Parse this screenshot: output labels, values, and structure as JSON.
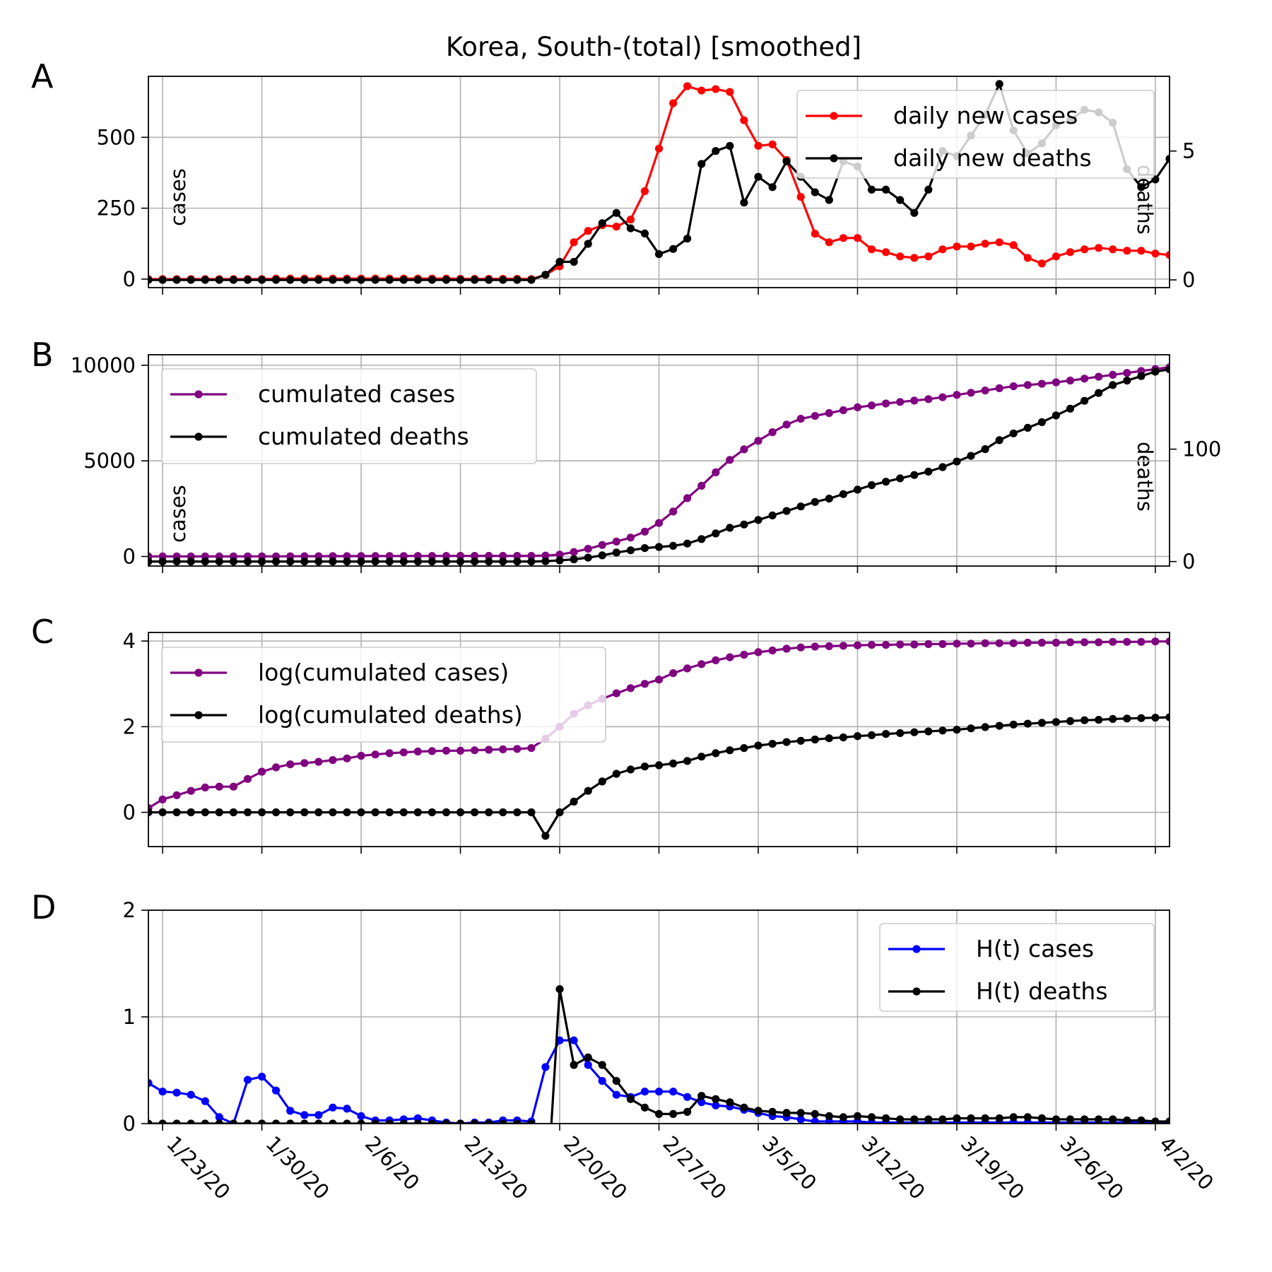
{
  "figure": {
    "title": "Korea, South-(total) [smoothed]"
  },
  "colors": {
    "cases": "#ff0000",
    "deaths": "#000000",
    "cumulated_cases": "#800080",
    "h_cases": "#0000ff",
    "grid": "#b0b0b0"
  },
  "x_tick_labels": [
    "1/23/20",
    "1/30/20",
    "2/6/20",
    "2/13/20",
    "2/20/20",
    "2/27/20",
    "3/5/20",
    "3/12/20",
    "3/19/20",
    "3/26/20",
    "4/2/20"
  ],
  "chart_data": [
    {
      "panel": "A",
      "type": "line",
      "title": "Korea, South-(total) [smoothed]",
      "x_start": "2020-01-22",
      "x_end": "2020-04-03",
      "xticks": [
        "1/23/20",
        "1/30/20",
        "2/6/20",
        "2/13/20",
        "2/20/20",
        "2/27/20",
        "3/5/20",
        "3/12/20",
        "3/19/20",
        "3/26/20",
        "4/2/20"
      ],
      "ylabel": "cases",
      "ylim": [
        -30,
        715
      ],
      "yticks": [
        0,
        250,
        500
      ],
      "y2label": "deaths",
      "y2lim": [
        -0.3,
        7.9
      ],
      "y2ticks": [
        0,
        5
      ],
      "grid": true,
      "legend_position": "upper right",
      "series": [
        {
          "name": "daily new cases",
          "axis": "left",
          "color": "#ff0000",
          "values": [
            0,
            0,
            0,
            0,
            0,
            0,
            0,
            0,
            0,
            2,
            2,
            2,
            2,
            2,
            2,
            2,
            2,
            2,
            2,
            2,
            2,
            2,
            1,
            1,
            1,
            1,
            1,
            0,
            15,
            45,
            130,
            170,
            190,
            185,
            210,
            310,
            460,
            620,
            680,
            665,
            670,
            660,
            560,
            470,
            475,
            420,
            290,
            160,
            130,
            145,
            145,
            105,
            95,
            80,
            75,
            80,
            105,
            115,
            115,
            125,
            130,
            120,
            75,
            55,
            80,
            95,
            105,
            110,
            105,
            100,
            100,
            90,
            85
          ]
        },
        {
          "name": "daily new deaths",
          "axis": "right",
          "color": "#000000",
          "values": [
            0,
            0,
            0,
            0,
            0,
            0,
            0,
            0,
            0,
            0,
            0,
            0,
            0,
            0,
            0,
            0,
            0,
            0,
            0,
            0,
            0,
            0,
            0,
            0,
            0,
            0,
            0,
            0,
            0.2,
            0.7,
            0.7,
            1.4,
            2.2,
            2.6,
            2.0,
            1.8,
            1.0,
            1.2,
            1.6,
            4.5,
            5.0,
            5.2,
            3.0,
            4.0,
            3.6,
            4.6,
            4.0,
            3.4,
            3.1,
            4.6,
            4.4,
            3.5,
            3.5,
            3.1,
            2.6,
            3.5,
            5.0,
            4.8,
            5.6,
            6.4,
            7.6,
            5.8,
            4.9,
            5.3,
            6.0,
            6.2,
            6.6,
            6.5,
            6.1,
            4.3,
            3.6,
            3.9,
            4.7
          ]
        }
      ]
    },
    {
      "panel": "B",
      "type": "line",
      "x_start": "2020-01-22",
      "x_end": "2020-04-03",
      "xticks": [
        "1/23/20",
        "1/30/20",
        "2/6/20",
        "2/13/20",
        "2/20/20",
        "2/27/20",
        "3/5/20",
        "3/12/20",
        "3/19/20",
        "3/26/20",
        "4/2/20"
      ],
      "ylabel": "cases",
      "ylim": [
        -500,
        10550
      ],
      "yticks": [
        0,
        5000,
        10000
      ],
      "y2label": "deaths",
      "y2lim": [
        -4,
        184
      ],
      "y2ticks": [
        0,
        100
      ],
      "grid": true,
      "legend_position": "upper left",
      "series": [
        {
          "name": "cumulated cases",
          "axis": "left",
          "color": "#800080",
          "values": [
            1,
            1,
            1,
            1,
            2,
            2,
            4,
            5,
            6,
            8,
            10,
            12,
            14,
            16,
            18,
            20,
            22,
            24,
            26,
            28,
            29,
            30,
            31,
            31,
            31,
            31,
            31,
            31,
            46,
            100,
            230,
            400,
            600,
            780,
            990,
            1300,
            1750,
            2350,
            3050,
            3700,
            4400,
            5050,
            5600,
            6050,
            6500,
            6900,
            7200,
            7350,
            7500,
            7650,
            7800,
            7900,
            8000,
            8080,
            8150,
            8230,
            8330,
            8450,
            8560,
            8680,
            8800,
            8900,
            8970,
            9030,
            9110,
            9200,
            9300,
            9400,
            9500,
            9600,
            9700,
            9800,
            9900
          ]
        },
        {
          "name": "cumulated deaths",
          "axis": "right",
          "color": "#000000",
          "values": [
            0,
            0,
            0,
            0,
            0,
            0,
            0,
            0,
            0,
            0,
            0,
            0,
            0,
            0,
            0,
            0,
            0,
            0,
            0,
            0,
            0,
            0,
            0,
            0,
            0,
            0,
            0,
            0,
            0.3,
            1,
            2,
            3.5,
            5.5,
            8,
            10,
            12,
            13,
            14,
            16,
            20,
            25,
            30,
            33,
            37,
            41,
            45,
            49,
            53,
            56,
            60,
            64,
            68,
            71,
            74,
            77,
            80,
            84,
            89,
            94,
            100,
            108,
            114,
            119,
            124,
            130,
            136,
            143,
            150,
            157,
            161,
            165,
            169,
            171
          ]
        }
      ]
    },
    {
      "panel": "C",
      "type": "line",
      "x_start": "2020-01-22",
      "x_end": "2020-04-03",
      "xticks": [
        "1/23/20",
        "1/30/20",
        "2/6/20",
        "2/13/20",
        "2/20/20",
        "2/27/20",
        "3/5/20",
        "3/12/20",
        "3/19/20",
        "3/26/20",
        "4/2/20"
      ],
      "ylim": [
        -0.8,
        4.2
      ],
      "yticks": [
        0,
        2,
        4
      ],
      "grid": true,
      "legend_position": "upper left",
      "series": [
        {
          "name": "log(cumulated cases)",
          "color": "#800080",
          "values": [
            0.1,
            0.3,
            0.4,
            0.5,
            0.58,
            0.6,
            0.6,
            0.78,
            0.95,
            1.05,
            1.12,
            1.15,
            1.18,
            1.22,
            1.26,
            1.32,
            1.35,
            1.38,
            1.4,
            1.42,
            1.43,
            1.44,
            1.44,
            1.45,
            1.46,
            1.47,
            1.48,
            1.5,
            1.72,
            2.0,
            2.3,
            2.5,
            2.65,
            2.78,
            2.9,
            3.0,
            3.1,
            3.25,
            3.36,
            3.46,
            3.55,
            3.62,
            3.68,
            3.74,
            3.78,
            3.82,
            3.85,
            3.87,
            3.88,
            3.89,
            3.9,
            3.91,
            3.91,
            3.92,
            3.92,
            3.93,
            3.93,
            3.94,
            3.94,
            3.95,
            3.95,
            3.95,
            3.96,
            3.96,
            3.96,
            3.97,
            3.97,
            3.97,
            3.98,
            3.98,
            3.98,
            3.99,
            3.99
          ]
        },
        {
          "name": "log(cumulated deaths)",
          "color": "#000000",
          "values": [
            0,
            0,
            0,
            0,
            0,
            0,
            0,
            0,
            0,
            0,
            0,
            0,
            0,
            0,
            0,
            0,
            0,
            0,
            0,
            0,
            0,
            0,
            0,
            0,
            0,
            0,
            0,
            0,
            -0.55,
            0,
            0.25,
            0.5,
            0.72,
            0.9,
            1.0,
            1.07,
            1.1,
            1.14,
            1.2,
            1.3,
            1.38,
            1.45,
            1.5,
            1.56,
            1.6,
            1.64,
            1.67,
            1.7,
            1.73,
            1.75,
            1.78,
            1.8,
            1.83,
            1.85,
            1.87,
            1.89,
            1.91,
            1.93,
            1.96,
            1.99,
            2.02,
            2.05,
            2.07,
            2.09,
            2.11,
            2.13,
            2.15,
            2.16,
            2.18,
            2.19,
            2.2,
            2.21,
            2.22
          ]
        }
      ]
    },
    {
      "panel": "D",
      "type": "line",
      "x_start": "2020-01-22",
      "x_end": "2020-04-03",
      "xticks": [
        "1/23/20",
        "1/30/20",
        "2/6/20",
        "2/13/20",
        "2/20/20",
        "2/27/20",
        "3/5/20",
        "3/12/20",
        "3/19/20",
        "3/26/20",
        "4/2/20"
      ],
      "ylim": [
        0,
        2
      ],
      "yticks": [
        0,
        1,
        2
      ],
      "grid": true,
      "legend_position": "upper right",
      "series": [
        {
          "name": "H(t) cases",
          "color": "#0000ff",
          "values": [
            0.38,
            0.3,
            0.29,
            0.27,
            0.21,
            0.06,
            0.0,
            0.41,
            0.44,
            0.31,
            0.12,
            0.08,
            0.08,
            0.15,
            0.14,
            0.07,
            0.03,
            0.03,
            0.04,
            0.05,
            0.03,
            0.01,
            0.0,
            0.01,
            0.01,
            0.03,
            0.03,
            0.02,
            0.53,
            0.78,
            0.78,
            0.55,
            0.4,
            0.27,
            0.25,
            0.3,
            0.3,
            0.3,
            0.25,
            0.2,
            0.17,
            0.16,
            0.13,
            0.1,
            0.07,
            0.06,
            0.04,
            0.02,
            0.02,
            0.02,
            0.02,
            0.01,
            0.01,
            0.01,
            0.01,
            0.01,
            0.01,
            0.01,
            0.01,
            0.01,
            0.01,
            0.01,
            0.01,
            0.01,
            0.01,
            0.01,
            0.01,
            0.01,
            0.01,
            0.01,
            0.01,
            0.01,
            0.01
          ]
        },
        {
          "name": "H(t) deaths",
          "color": "#000000",
          "values": [
            0,
            0,
            0,
            0,
            0,
            0,
            0,
            0,
            0,
            0,
            0,
            0,
            0,
            0,
            0,
            0,
            0,
            0,
            0,
            0,
            0,
            0,
            0,
            0,
            0,
            0,
            0,
            0,
            -0.9,
            1.26,
            0.55,
            0.62,
            0.55,
            0.4,
            0.23,
            0.15,
            0.09,
            0.09,
            0.11,
            0.26,
            0.23,
            0.2,
            0.15,
            0.12,
            0.11,
            0.1,
            0.1,
            0.09,
            0.07,
            0.06,
            0.07,
            0.06,
            0.05,
            0.04,
            0.04,
            0.04,
            0.04,
            0.05,
            0.05,
            0.05,
            0.05,
            0.06,
            0.06,
            0.05,
            0.04,
            0.04,
            0.04,
            0.04,
            0.04,
            0.03,
            0.03,
            0.02,
            0.02
          ]
        }
      ]
    }
  ]
}
